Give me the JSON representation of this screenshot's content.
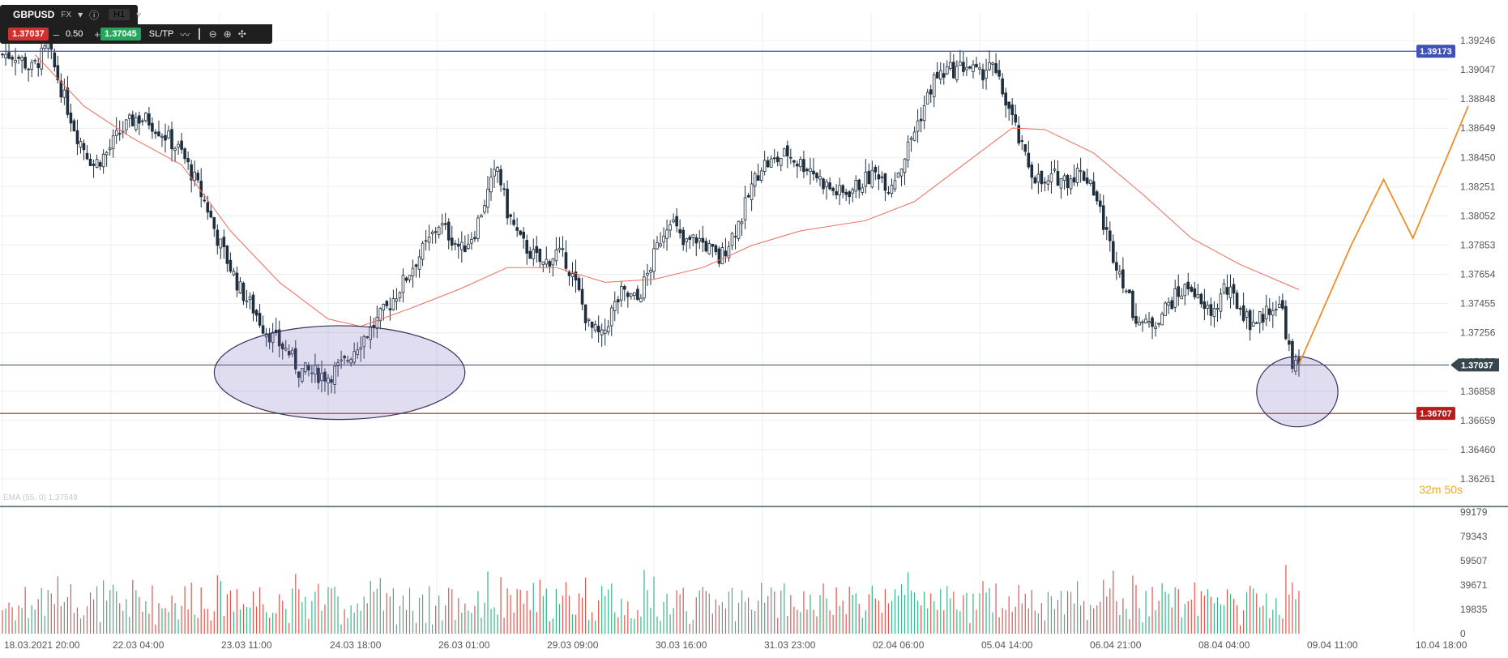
{
  "toolbar": {
    "symbol": "GBPUSD",
    "market": "FX",
    "timeframe": "H1",
    "sell_price": "1.37037",
    "quantity": "0.50",
    "buy_price": "1.37045",
    "sltp_label": "SL/TP",
    "minus": "–",
    "plus": "+"
  },
  "indicator_label": "EMA (55, 0) 1.37549",
  "countdown": {
    "minutes": "32m",
    "seconds": "50s"
  },
  "markers": {
    "resistance": "1.39173",
    "current": "1.37037",
    "support": "1.36707"
  },
  "colors": {
    "bull": "#3b5268",
    "bear": "#1f2e3d",
    "ema": "#f26b5b",
    "resistance": "#3f51b5",
    "support": "#b71c1c",
    "current": "#37474f",
    "projection": "#f28c28",
    "vol_up": "#3cb38a",
    "vol_down": "#e0574f"
  },
  "chart_data": {
    "type": "candlestick",
    "symbol": "GBPUSD",
    "timeframe": "H1",
    "x_tick_labels": [
      "18.03.2021 20:00",
      "22.03 04:00",
      "23.03 11:00",
      "24.03 18:00",
      "26.03 01:00",
      "29.03 09:00",
      "30.03 16:00",
      "31.03 23:00",
      "02.04 06:00",
      "05.04 14:00",
      "06.04 21:00",
      "08.04 04:00",
      "09.04 11:00",
      "10.04 18:00"
    ],
    "y_tick_labels": [
      "1.39246",
      "1.39047",
      "1.38848",
      "1.38649",
      "1.38450",
      "1.38251",
      "1.38052",
      "1.37853",
      "1.37654",
      "1.37455",
      "1.37256",
      "1.37057",
      "1.36858",
      "1.36659",
      "1.36460",
      "1.36261"
    ],
    "ylim": [
      1.36261,
      1.39246
    ],
    "horizontal_lines": [
      {
        "name": "resistance",
        "value": 1.39173
      },
      {
        "name": "current",
        "value": 1.37037
      },
      {
        "name": "support",
        "value": 1.36707
      }
    ],
    "close_path": [
      [
        0,
        1.3915
      ],
      [
        4,
        1.3915
      ],
      [
        9,
        1.3905
      ],
      [
        14,
        1.392
      ],
      [
        19,
        1.3885
      ],
      [
        23,
        1.386
      ],
      [
        28,
        1.384
      ],
      [
        32,
        1.3848
      ],
      [
        36,
        1.3862
      ],
      [
        41,
        1.3872
      ],
      [
        45,
        1.387
      ],
      [
        50,
        1.386
      ],
      [
        55,
        1.3848
      ],
      [
        59,
        1.383
      ],
      [
        63,
        1.381
      ],
      [
        66,
        1.379
      ],
      [
        70,
        1.377
      ],
      [
        73,
        1.3755
      ],
      [
        77,
        1.3742
      ],
      [
        80,
        1.373
      ],
      [
        84,
        1.372
      ],
      [
        88,
        1.3712
      ],
      [
        91,
        1.37
      ],
      [
        96,
        1.3698
      ],
      [
        100,
        1.3696
      ],
      [
        105,
        1.3705
      ],
      [
        109,
        1.3718
      ],
      [
        113,
        1.3728
      ],
      [
        118,
        1.3742
      ],
      [
        123,
        1.376
      ],
      [
        127,
        1.3775
      ],
      [
        131,
        1.3788
      ],
      [
        134,
        1.38
      ],
      [
        138,
        1.379
      ],
      [
        141,
        1.3782
      ],
      [
        145,
        1.3795
      ],
      [
        148,
        1.3815
      ],
      [
        152,
        1.3838
      ],
      [
        155,
        1.3808
      ],
      [
        159,
        1.3788
      ],
      [
        163,
        1.3778
      ],
      [
        166,
        1.3772
      ],
      [
        170,
        1.378
      ],
      [
        173,
        1.3775
      ],
      [
        177,
        1.3752
      ],
      [
        180,
        1.373
      ],
      [
        184,
        1.3722
      ],
      [
        187,
        1.374
      ],
      [
        190,
        1.3752
      ],
      [
        195,
        1.3748
      ],
      [
        198,
        1.3765
      ],
      [
        202,
        1.379
      ],
      [
        205,
        1.3805
      ],
      [
        209,
        1.3785
      ],
      [
        213,
        1.379
      ],
      [
        216,
        1.3785
      ],
      [
        220,
        1.3775
      ],
      [
        224,
        1.3792
      ],
      [
        227,
        1.3805
      ],
      [
        230,
        1.3825
      ],
      [
        233,
        1.384
      ],
      [
        237,
        1.3842
      ],
      [
        241,
        1.3848
      ],
      [
        244,
        1.3842
      ],
      [
        248,
        1.3838
      ],
      [
        251,
        1.383
      ],
      [
        255,
        1.3822
      ],
      [
        258,
        1.382
      ],
      [
        262,
        1.3825
      ],
      [
        265,
        1.383
      ],
      [
        269,
        1.3835
      ],
      [
        272,
        1.3825
      ],
      [
        276,
        1.384
      ],
      [
        279,
        1.3858
      ],
      [
        283,
        1.388
      ],
      [
        286,
        1.3898
      ],
      [
        290,
        1.3904
      ],
      [
        293,
        1.3905
      ],
      [
        296,
        1.3908
      ],
      [
        300,
        1.39
      ],
      [
        303,
        1.391
      ],
      [
        306,
        1.3895
      ],
      [
        309,
        1.3878
      ],
      [
        313,
        1.385
      ],
      [
        316,
        1.3835
      ],
      [
        320,
        1.3825
      ],
      [
        323,
        1.3832
      ],
      [
        327,
        1.383
      ],
      [
        330,
        1.3835
      ],
      [
        334,
        1.383
      ],
      [
        337,
        1.3808
      ],
      [
        340,
        1.3785
      ],
      [
        344,
        1.3762
      ],
      [
        347,
        1.374
      ],
      [
        351,
        1.373
      ],
      [
        354,
        1.3734
      ],
      [
        358,
        1.3745
      ],
      [
        361,
        1.3752
      ],
      [
        365,
        1.3758
      ],
      [
        368,
        1.3742
      ],
      [
        372,
        1.374
      ],
      [
        375,
        1.3756
      ],
      [
        379,
        1.3746
      ],
      [
        383,
        1.3733
      ],
      [
        386,
        1.3735
      ],
      [
        390,
        1.3745
      ],
      [
        393,
        1.3741
      ],
      [
        396,
        1.37
      ],
      [
        398,
        1.3704
      ]
    ],
    "ema_55": [
      [
        10,
        1.3915
      ],
      [
        25,
        1.388
      ],
      [
        40,
        1.3858
      ],
      [
        55,
        1.384
      ],
      [
        70,
        1.3795
      ],
      [
        85,
        1.376
      ],
      [
        100,
        1.3735
      ],
      [
        110,
        1.373
      ],
      [
        125,
        1.3742
      ],
      [
        140,
        1.3755
      ],
      [
        155,
        1.377
      ],
      [
        170,
        1.377
      ],
      [
        185,
        1.376
      ],
      [
        200,
        1.3762
      ],
      [
        215,
        1.377
      ],
      [
        230,
        1.3785
      ],
      [
        245,
        1.3795
      ],
      [
        265,
        1.3802
      ],
      [
        280,
        1.3815
      ],
      [
        295,
        1.384
      ],
      [
        310,
        1.3865
      ],
      [
        320,
        1.3864
      ],
      [
        335,
        1.3848
      ],
      [
        350,
        1.382
      ],
      [
        365,
        1.379
      ],
      [
        380,
        1.3772
      ],
      [
        398,
        1.3755
      ]
    ],
    "projection": [
      [
        398,
        1.3704
      ],
      [
        414,
        1.3785
      ],
      [
        424,
        1.383
      ],
      [
        433,
        1.379
      ],
      [
        450,
        1.388
      ]
    ],
    "highlight_zones": [
      {
        "from_index": 70,
        "to_index": 137,
        "low": 1.3671,
        "high": 1.3726
      },
      {
        "from_index": 390,
        "to_index": 405,
        "low": 1.3666,
        "high": 1.3705
      }
    ],
    "volume": {
      "y_tick_labels": [
        "99179",
        "79343",
        "59507",
        "39671",
        "19835",
        "0"
      ],
      "ylim": [
        0,
        99179
      ]
    }
  }
}
